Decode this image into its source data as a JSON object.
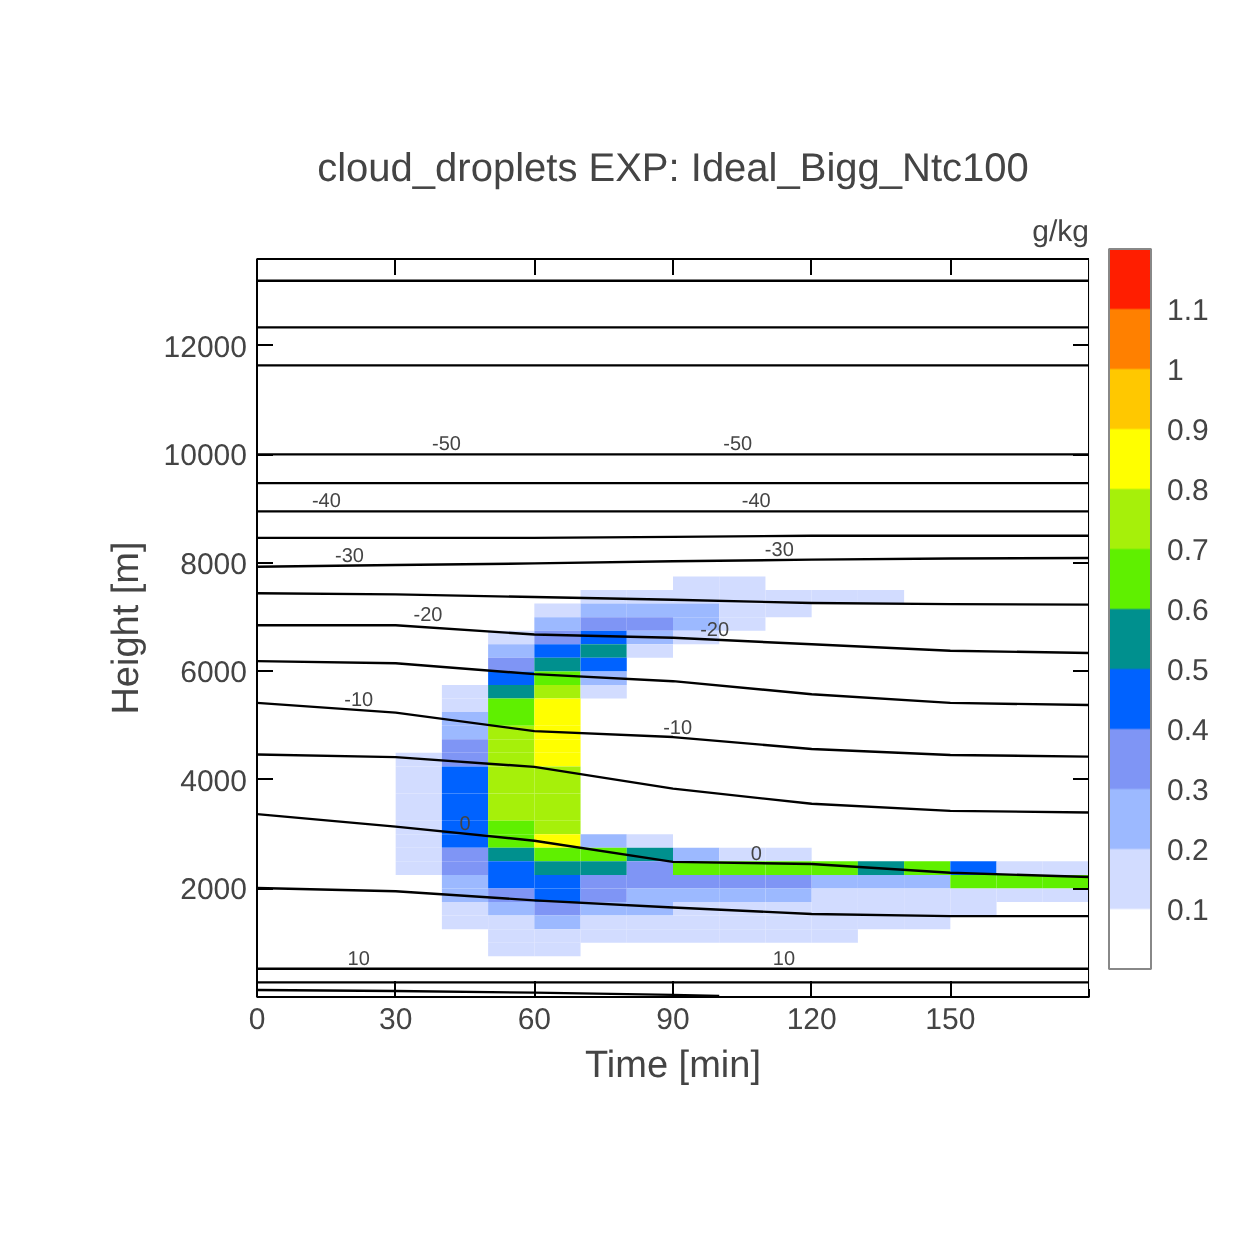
{
  "chart_data": {
    "type": "heatmap",
    "title": "cloud_droplets EXP: Ideal_Bigg_Ntc100",
    "xlabel": "Time [min]",
    "ylabel": "Height [m]",
    "clabel": "g/kg",
    "xlim": [
      0,
      180
    ],
    "ylim": [
      0,
      13600
    ],
    "xticks": [
      0,
      30,
      60,
      90,
      120,
      150
    ],
    "yticks": [
      2000,
      4000,
      6000,
      8000,
      10000,
      12000
    ],
    "annotations": [
      {
        "text": "-50",
        "x": 41,
        "y": 10000
      },
      {
        "text": "-50",
        "x": 104,
        "y": 10000
      },
      {
        "text": "-40",
        "x": 15,
        "y": 8950
      },
      {
        "text": "-40",
        "x": 108,
        "y": 8950
      },
      {
        "text": "-30",
        "x": 20,
        "y": 7950
      },
      {
        "text": "-30",
        "x": 113,
        "y": 8050
      },
      {
        "text": "-20",
        "x": 37,
        "y": 6850
      },
      {
        "text": "-20",
        "x": 99,
        "y": 6580
      },
      {
        "text": "-10",
        "x": 22,
        "y": 5290
      },
      {
        "text": "-10",
        "x": 91,
        "y": 4780
      },
      {
        "text": "0",
        "x": 45,
        "y": 3010
      },
      {
        "text": "0",
        "x": 108,
        "y": 2460
      },
      {
        "text": "10",
        "x": 22,
        "y": 520
      },
      {
        "text": "10",
        "x": 114,
        "y": 520
      }
    ],
    "clim": [
      0,
      1.2
    ],
    "cticks": [
      0.1,
      0.2,
      0.3,
      0.4,
      0.5,
      0.6,
      0.7,
      0.8,
      0.9,
      1,
      1.1
    ],
    "colors": [
      "#ffffff",
      "#d2dcff",
      "#9cb9ff",
      "#7f95f5",
      "#0062ff",
      "#00908e",
      "#5ff000",
      "#a6f00a",
      "#ffff00",
      "#ffc800",
      "#ff8000",
      "#ff1e00"
    ],
    "x": [
      35,
      45,
      55,
      65,
      75,
      85,
      95,
      105,
      115,
      125,
      135,
      145,
      155,
      165,
      175
    ],
    "y": [
      7625,
      7375,
      7125,
      6875,
      6625,
      6375,
      6125,
      5875,
      5625,
      5375,
      5125,
      4875,
      4625,
      4375,
      4125,
      3875,
      3625,
      3375,
      3125,
      2875,
      2625,
      2375,
      2125,
      1875,
      1625,
      1375,
      1125,
      875
    ],
    "cells": [
      [
        null,
        null,
        null,
        null,
        null,
        null,
        0.15,
        0.15,
        null,
        null,
        null,
        null,
        null,
        null,
        null
      ],
      [
        null,
        null,
        null,
        null,
        0.15,
        0.15,
        0.15,
        0.15,
        0.15,
        0.15,
        0.15,
        null,
        null,
        null,
        null
      ],
      [
        null,
        null,
        null,
        0.15,
        0.25,
        0.25,
        0.25,
        0.15,
        0.15,
        null,
        null,
        null,
        null,
        null,
        null
      ],
      [
        null,
        null,
        null,
        0.25,
        0.35,
        0.35,
        0.25,
        0.15,
        null,
        null,
        null,
        null,
        null,
        null,
        null
      ],
      [
        null,
        null,
        0.15,
        0.35,
        0.45,
        0.25,
        0.15,
        null,
        null,
        null,
        null,
        null,
        null,
        null,
        null
      ],
      [
        null,
        null,
        0.25,
        0.45,
        0.55,
        0.15,
        null,
        null,
        null,
        null,
        null,
        null,
        null,
        null,
        null
      ],
      [
        null,
        null,
        0.35,
        0.55,
        0.45,
        null,
        null,
        null,
        null,
        null,
        null,
        null,
        null,
        null,
        null
      ],
      [
        null,
        null,
        0.45,
        0.65,
        0.25,
        null,
        null,
        null,
        null,
        null,
        null,
        null,
        null,
        null,
        null
      ],
      [
        null,
        0.15,
        0.55,
        0.75,
        0.15,
        null,
        null,
        null,
        null,
        null,
        null,
        null,
        null,
        null,
        null
      ],
      [
        null,
        0.15,
        0.65,
        0.85,
        null,
        null,
        null,
        null,
        null,
        null,
        null,
        null,
        null,
        null,
        null
      ],
      [
        null,
        0.25,
        0.65,
        0.85,
        null,
        null,
        null,
        null,
        null,
        null,
        null,
        null,
        null,
        null,
        null
      ],
      [
        null,
        0.25,
        0.75,
        0.85,
        null,
        null,
        null,
        null,
        null,
        null,
        null,
        null,
        null,
        null,
        null
      ],
      [
        null,
        0.35,
        0.75,
        0.85,
        null,
        null,
        null,
        null,
        null,
        null,
        null,
        null,
        null,
        null,
        null
      ],
      [
        0.15,
        0.35,
        0.75,
        0.85,
        null,
        null,
        null,
        null,
        null,
        null,
        null,
        null,
        null,
        null,
        null
      ],
      [
        0.15,
        0.45,
        0.75,
        0.75,
        null,
        null,
        null,
        null,
        null,
        null,
        null,
        null,
        null,
        null,
        null
      ],
      [
        0.15,
        0.45,
        0.75,
        0.75,
        null,
        null,
        null,
        null,
        null,
        null,
        null,
        null,
        null,
        null,
        null
      ],
      [
        0.15,
        0.45,
        0.75,
        0.75,
        null,
        null,
        null,
        null,
        null,
        null,
        null,
        null,
        null,
        null,
        null
      ],
      [
        0.15,
        0.45,
        0.75,
        0.75,
        null,
        null,
        null,
        null,
        null,
        null,
        null,
        null,
        null,
        null,
        null
      ],
      [
        0.15,
        0.45,
        0.65,
        0.75,
        null,
        null,
        null,
        null,
        null,
        null,
        null,
        null,
        null,
        null,
        null
      ],
      [
        0.15,
        0.45,
        0.65,
        0.85,
        0.25,
        0.15,
        null,
        null,
        null,
        null,
        null,
        null,
        null,
        null,
        null
      ],
      [
        0.15,
        0.35,
        0.55,
        0.65,
        0.65,
        0.55,
        0.25,
        0.15,
        0.15,
        null,
        null,
        null,
        null,
        null,
        null
      ],
      [
        0.15,
        0.35,
        0.45,
        0.55,
        0.55,
        0.35,
        0.65,
        0.65,
        0.65,
        0.65,
        0.55,
        0.65,
        0.45,
        0.15,
        0.15
      ],
      [
        null,
        0.25,
        0.45,
        0.45,
        0.35,
        0.35,
        0.35,
        0.35,
        0.35,
        0.25,
        0.25,
        0.25,
        0.65,
        0.65,
        0.65
      ],
      [
        null,
        0.25,
        0.35,
        0.45,
        0.35,
        0.25,
        0.25,
        0.25,
        0.25,
        0.15,
        0.15,
        0.15,
        0.15,
        0.15,
        0.15
      ],
      [
        null,
        0.15,
        0.25,
        0.35,
        0.25,
        0.25,
        0.15,
        0.15,
        0.15,
        0.15,
        0.15,
        0.15,
        0.15,
        null,
        null
      ],
      [
        null,
        0.15,
        0.15,
        0.25,
        0.15,
        0.15,
        0.15,
        0.15,
        0.15,
        0.15,
        0.15,
        0.15,
        null,
        null,
        null
      ],
      [
        null,
        null,
        0.15,
        0.15,
        0.15,
        0.15,
        0.15,
        0.15,
        0.15,
        0.15,
        null,
        null,
        null,
        null,
        null
      ],
      [
        null,
        null,
        0.15,
        0.15,
        null,
        null,
        null,
        null,
        null,
        null,
        null,
        null,
        null,
        null,
        null
      ]
    ],
    "series": [
      {
        "type": "line",
        "color": "#000000",
        "x": [
          0,
          30,
          60,
          90,
          120,
          150,
          180
        ],
        "values": [
          13200,
          13200,
          13200,
          13200,
          13200,
          13200,
          13200
        ]
      },
      {
        "type": "line",
        "color": "#000000",
        "x": [
          0,
          30,
          60,
          90,
          120,
          150,
          180
        ],
        "values": [
          12340,
          12340,
          12340,
          12340,
          12340,
          12340,
          12340
        ]
      },
      {
        "type": "line",
        "color": "#000000",
        "x": [
          0,
          30,
          60,
          90,
          120,
          150,
          180
        ],
        "values": [
          11640,
          11640,
          11640,
          11640,
          11640,
          11640,
          11640
        ]
      },
      {
        "type": "line",
        "color": "#000000",
        "x": [
          0,
          30,
          60,
          90,
          120,
          150,
          180
        ],
        "values": [
          10000,
          10000,
          10000,
          10000,
          10000,
          10000,
          10000
        ]
      },
      {
        "type": "line",
        "color": "#000000",
        "x": [
          0,
          30,
          60,
          90,
          120,
          150,
          180
        ],
        "values": [
          9470,
          9470,
          9470,
          9470,
          9470,
          9470,
          9470
        ]
      },
      {
        "type": "line",
        "color": "#000000",
        "x": [
          0,
          30,
          60,
          90,
          120,
          150,
          180
        ],
        "values": [
          8950,
          8950,
          8950,
          8950,
          8950,
          8950,
          8950
        ]
      },
      {
        "type": "line",
        "color": "#000000",
        "x": [
          0,
          30,
          60,
          90,
          120,
          150,
          180
        ],
        "values": [
          8460,
          8460,
          8460,
          8480,
          8500,
          8500,
          8500
        ]
      },
      {
        "type": "line",
        "color": "#000000",
        "x": [
          0,
          30,
          60,
          90,
          120,
          150,
          180
        ],
        "values": [
          7930,
          7960,
          7990,
          8030,
          8060,
          8080,
          8090
        ]
      },
      {
        "type": "line",
        "color": "#000000",
        "x": [
          0,
          30,
          60,
          90,
          120,
          150,
          180
        ],
        "values": [
          7440,
          7420,
          7370,
          7320,
          7260,
          7240,
          7230
        ]
      },
      {
        "type": "line",
        "color": "#000000",
        "x": [
          0,
          30,
          60,
          90,
          120,
          150,
          180
        ],
        "values": [
          6850,
          6850,
          6680,
          6620,
          6500,
          6380,
          6340
        ]
      },
      {
        "type": "line",
        "color": "#000000",
        "x": [
          0,
          30,
          60,
          90,
          120,
          150,
          180
        ],
        "values": [
          6190,
          6150,
          5950,
          5820,
          5580,
          5420,
          5380
        ]
      },
      {
        "type": "line",
        "color": "#000000",
        "x": [
          0,
          30,
          60,
          90,
          120,
          150,
          180
        ],
        "values": [
          5420,
          5240,
          4900,
          4790,
          4570,
          4460,
          4430
        ]
      },
      {
        "type": "line",
        "color": "#000000",
        "x": [
          0,
          30,
          60,
          90,
          120,
          150,
          180
        ],
        "values": [
          4470,
          4420,
          4240,
          3840,
          3560,
          3430,
          3400
        ]
      },
      {
        "type": "line",
        "color": "#000000",
        "x": [
          0,
          30,
          60,
          90,
          120,
          150,
          180
        ],
        "values": [
          3370,
          3140,
          2880,
          2490,
          2450,
          2290,
          2210
        ]
      },
      {
        "type": "line",
        "color": "#000000",
        "x": [
          0,
          30,
          60,
          90,
          120,
          150,
          180
        ],
        "values": [
          2010,
          1950,
          1780,
          1650,
          1530,
          1490,
          1490
        ]
      },
      {
        "type": "line",
        "color": "#000000",
        "x": [
          0,
          30,
          60,
          90,
          120,
          150,
          180
        ],
        "values": [
          520,
          520,
          520,
          520,
          520,
          520,
          520
        ]
      },
      {
        "type": "line",
        "color": "#000000",
        "x": [
          0,
          30,
          60,
          90,
          120,
          150,
          180
        ],
        "values": [
          270,
          270,
          270,
          270,
          270,
          270,
          270
        ]
      },
      {
        "type": "line",
        "color": "#000000",
        "x": [
          0,
          30,
          60,
          90,
          100
        ],
        "values": [
          130,
          110,
          80,
          40,
          20
        ]
      }
    ]
  }
}
